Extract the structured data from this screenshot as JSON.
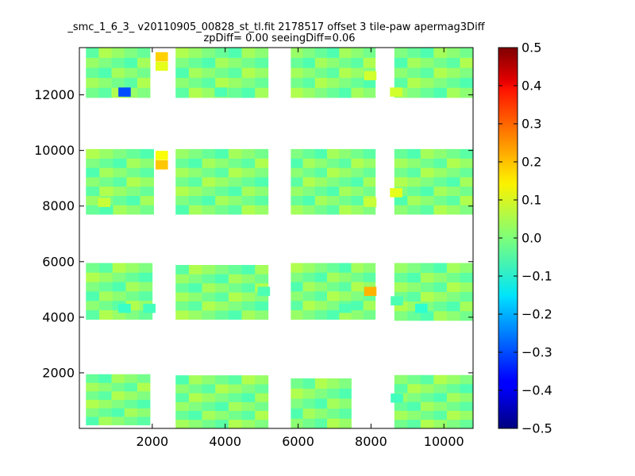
{
  "chart_data": {
    "type": "heatmap",
    "title": "_smc_1_6_3_ v20110905_00828_st_tl.fit 2178517 offset 3 tile-paw apermag3Diff",
    "subtitle": "zpDiff= 0.00 seeingDiff=0.06",
    "xlabel": "",
    "ylabel": "",
    "xlim": [
      0,
      10800
    ],
    "ylim": [
      0,
      13700
    ],
    "xticks": [
      "2000",
      "4000",
      "6000",
      "8000",
      "10000"
    ],
    "yticks": [
      "2000",
      "4000",
      "6000",
      "8000",
      "10000",
      "12000"
    ],
    "grid": false,
    "colormap": "jet",
    "colorbar": {
      "range": [
        -0.5,
        0.5
      ],
      "ticks": [
        "0.5",
        "0.4",
        "0.3",
        "0.2",
        "0.1",
        "0.0",
        "−0.1",
        "−0.2",
        "−0.3",
        "−0.4",
        "−0.5"
      ]
    },
    "cells": [
      {
        "x": 1240,
        "y": 12100,
        "value": -0.3
      },
      {
        "x": 2260,
        "y": 13370,
        "value": 0.17
      },
      {
        "x": 2260,
        "y": 13030,
        "value": 0.1
      },
      {
        "x": 2260,
        "y": 9820,
        "value": 0.12
      },
      {
        "x": 2260,
        "y": 9480,
        "value": 0.18
      },
      {
        "x": 7980,
        "y": 12690,
        "value": 0.08
      },
      {
        "x": 7980,
        "y": 8130,
        "value": 0.07
      },
      {
        "x": 7980,
        "y": 4930,
        "value": 0.2
      },
      {
        "x": 8690,
        "y": 12100,
        "value": 0.08
      },
      {
        "x": 8690,
        "y": 8480,
        "value": 0.1
      },
      {
        "x": 680,
        "y": 8130,
        "value": 0.07
      },
      {
        "x": 1240,
        "y": 4320,
        "value": -0.07
      },
      {
        "x": 1920,
        "y": 4320,
        "value": -0.06
      },
      {
        "x": 3880,
        "y": 12100,
        "value": -0.05
      },
      {
        "x": 5060,
        "y": 4930,
        "value": -0.05
      },
      {
        "x": 7290,
        "y": 4320,
        "value": -0.05
      },
      {
        "x": 9380,
        "y": 4320,
        "value": -0.08
      },
      {
        "x": 8710,
        "y": 4590,
        "value": -0.05
      },
      {
        "x": 8710,
        "y": 1090,
        "value": -0.06
      }
    ],
    "default_value": 0.0
  }
}
